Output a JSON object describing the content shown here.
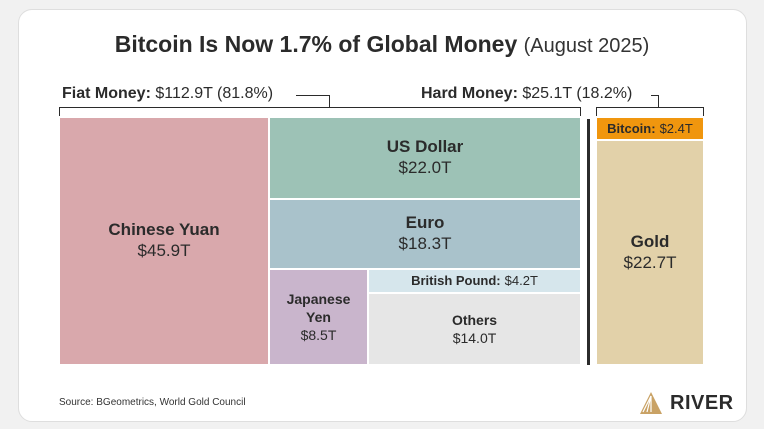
{
  "title": {
    "main": "Bitcoin Is Now 1.7% of Global Money",
    "sub": "(August 2025)"
  },
  "groups": {
    "fiat": {
      "name": "Fiat Money:",
      "value": "$112.9T (81.8%)"
    },
    "hard": {
      "name": "Hard Money:",
      "value": "$25.1T (18.2%)"
    }
  },
  "source": "Source: BGeometrics, World Gold Council",
  "brand": "RIVER",
  "colors": {
    "chinese_yuan": "#d9a8ac",
    "us_dollar": "#9dc2b6",
    "euro": "#a9c2cb",
    "japanese_yen": "#c9b5cc",
    "british_pound": "#d6e6ec",
    "others": "#e6e6e6",
    "bitcoin": "#f0960e",
    "gold": "#e2d1a9"
  },
  "chart_data": {
    "type": "treemap",
    "unit": "T USD",
    "items": [
      {
        "group": "Fiat Money",
        "label": "Chinese Yuan",
        "value_label": "$45.9T",
        "value": 45.9
      },
      {
        "group": "Fiat Money",
        "label": "US Dollar",
        "value_label": "$22.0T",
        "value": 22.0
      },
      {
        "group": "Fiat Money",
        "label": "Euro",
        "value_label": "$18.3T",
        "value": 18.3
      },
      {
        "group": "Fiat Money",
        "label": "Japanese Yen",
        "value_label": "$8.5T",
        "value": 8.5
      },
      {
        "group": "Fiat Money",
        "label": "British Pound:",
        "value_label": "$4.2T",
        "value": 4.2
      },
      {
        "group": "Fiat Money",
        "label": "Others",
        "value_label": "$14.0T",
        "value": 14.0
      },
      {
        "group": "Hard Money",
        "label": "Bitcoin:",
        "value_label": "$2.4T",
        "value": 2.4
      },
      {
        "group": "Hard Money",
        "label": "Gold",
        "value_label": "$22.7T",
        "value": 22.7
      }
    ]
  }
}
